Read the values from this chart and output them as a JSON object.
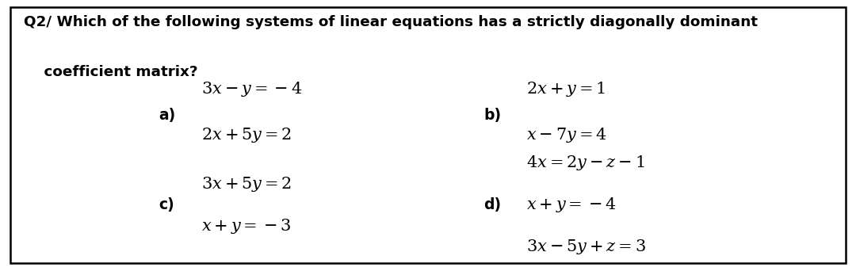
{
  "bg_color": "#ffffff",
  "border_color": "#000000",
  "text_color": "#000000",
  "title_line1": "Q2/ Which of the following systems of linear equations has a strictly diagonally dominant",
  "title_line2": "    coefficient matrix?",
  "option_a_label": "a)",
  "option_a_eq1": "$3x-y=-4$",
  "option_a_eq2": "$2x+5y=2$",
  "option_b_label": "b)",
  "option_b_eq1": "$2x+y=1$",
  "option_b_eq2": "$x-7y=4$",
  "option_c_label": "c)",
  "option_c_eq1": "$3x+5y=2$",
  "option_c_eq2": "$x+y=-3$",
  "option_d_label": "d)",
  "option_d_eq1": "$4x=2y-z-1$",
  "option_d_eq2": "$x+y=-4$",
  "option_d_eq3": "$3x-5y+z=3$",
  "title_fontsize": 13.2,
  "label_fontsize": 13.5,
  "eq_fontsize": 15.0,
  "fig_width": 10.8,
  "fig_height": 3.42,
  "dpi": 100
}
